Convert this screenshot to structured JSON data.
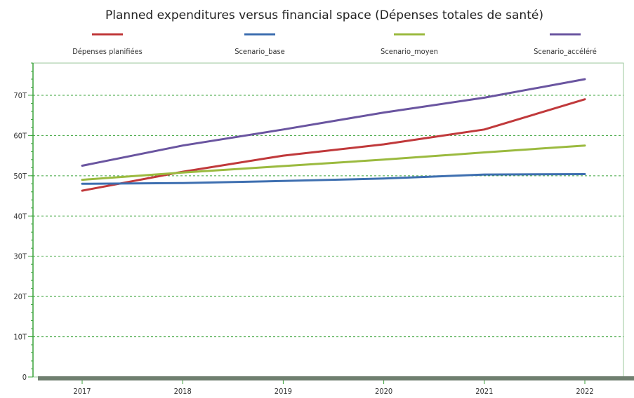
{
  "chart_data": {
    "type": "line",
    "title": "Planned expenditures versus financial space (Dépenses totales de santé)",
    "xlabel": "",
    "ylabel": "",
    "categories": [
      "2017",
      "2018",
      "2019",
      "2020",
      "2021",
      "2022"
    ],
    "y_ticks": [
      0,
      10,
      20,
      30,
      40,
      50,
      60,
      70
    ],
    "y_tick_labels": [
      "0",
      "10T",
      "20T",
      "30T",
      "40T",
      "50T",
      "60T",
      "70T"
    ],
    "ylim": [
      0,
      78
    ],
    "grid": true,
    "legend_position": "top",
    "series": [
      {
        "name": "Dépenses planifiées",
        "color": "#c0393b",
        "values": [
          46.3,
          51,
          55,
          57.8,
          61.5,
          69
        ]
      },
      {
        "name": "Scenario_base",
        "color": "#3e6fb0",
        "values": [
          48,
          48.2,
          48.7,
          49.3,
          50.3,
          50.4
        ]
      },
      {
        "name": "Scenario_moyen",
        "color": "#9bba3f",
        "values": [
          49,
          50.8,
          52.4,
          54,
          55.8,
          57.5
        ]
      },
      {
        "name": "Scenario_accéléré",
        "color": "#6a55a0",
        "values": [
          52.5,
          57.5,
          61.5,
          65.7,
          69.4,
          74
        ]
      }
    ]
  }
}
